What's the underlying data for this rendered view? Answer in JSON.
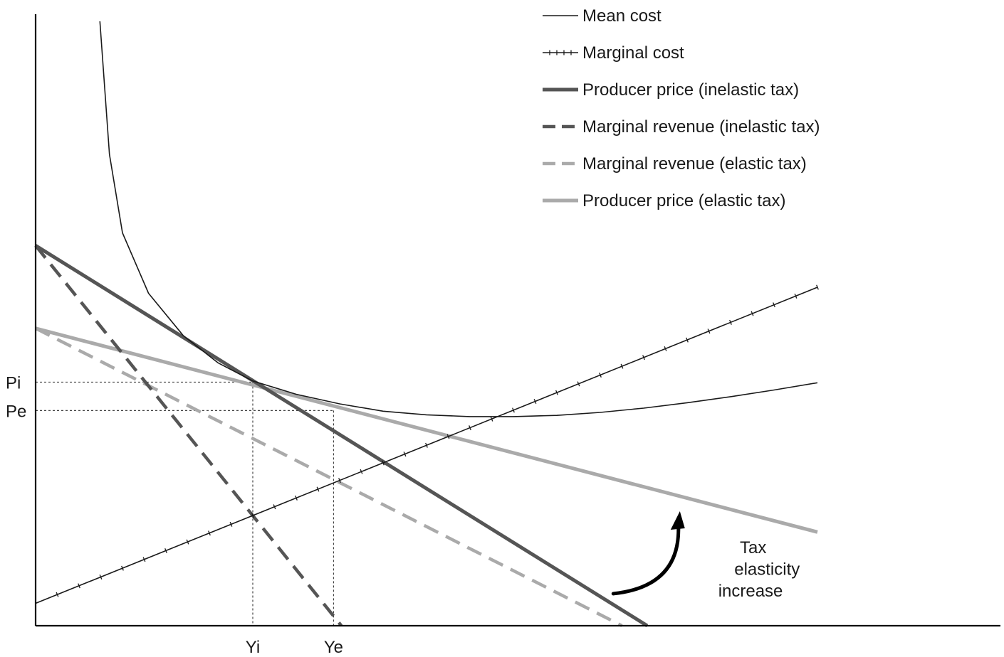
{
  "chart_data": {
    "type": "line",
    "title": "",
    "xlabel": "",
    "ylabel": "",
    "xlim": [
      0,
      100
    ],
    "ylim": [
      0,
      100
    ],
    "grid": false,
    "legend_position": "top-right",
    "axis_color": "#000000",
    "series": [
      {
        "name": "Mean cost",
        "style": "thin-solid",
        "color": "#1a1a1a",
        "points": [
          [
            7.4,
            100
          ],
          [
            8.5,
            78
          ],
          [
            10,
            65
          ],
          [
            13,
            55
          ],
          [
            17,
            48
          ],
          [
            21,
            43.5
          ],
          [
            25,
            40.5
          ],
          [
            30,
            38.3
          ],
          [
            35,
            36.7
          ],
          [
            40,
            35.5
          ],
          [
            45,
            34.9
          ],
          [
            50,
            34.6
          ],
          [
            55,
            34.6
          ],
          [
            60,
            34.8
          ],
          [
            65,
            35.3
          ],
          [
            70,
            36
          ],
          [
            75,
            36.9
          ],
          [
            80,
            37.9
          ],
          [
            85,
            39
          ],
          [
            90,
            40.2
          ]
        ]
      },
      {
        "name": "Marginal cost",
        "style": "thin-solid-ticked",
        "color": "#1a1a1a",
        "points": [
          [
            0,
            3.7
          ],
          [
            90,
            56
          ]
        ]
      },
      {
        "name": "Producer price (inelastic tax)",
        "style": "thick-solid",
        "color": "#555555",
        "points": [
          [
            0,
            62.9
          ],
          [
            70.4,
            0
          ]
        ]
      },
      {
        "name": "Marginal revenue (inelastic tax)",
        "style": "thick-dashed",
        "color": "#555555",
        "points": [
          [
            0,
            62.9
          ],
          [
            35.2,
            0
          ]
        ]
      },
      {
        "name": "Marginal revenue (elastic tax)",
        "style": "thick-dashed",
        "color": "#aaaaaa",
        "points": [
          [
            0,
            49.2
          ],
          [
            67.5,
            0
          ]
        ]
      },
      {
        "name": "Producer price (elastic tax)",
        "style": "thick-solid",
        "color": "#aaaaaa",
        "points": [
          [
            0,
            49.2
          ],
          [
            90,
            15.5
          ]
        ]
      }
    ],
    "x_ticks": [
      {
        "label": "Yi",
        "value": 25
      },
      {
        "label": "Ye",
        "value": 34.3
      }
    ],
    "y_ticks": [
      {
        "label": "Pi",
        "value": 40.3
      },
      {
        "label": "Pe",
        "value": 35.6
      }
    ],
    "guides": [
      {
        "x": 25,
        "y": 40.3
      },
      {
        "x": 34.3,
        "y": 35.6
      }
    ],
    "annotation": {
      "lines": [
        "Tax",
        "elasticity",
        "increase"
      ],
      "arrow_from": [
        66.5,
        5.3
      ],
      "arrow_to": [
        74,
        18
      ]
    }
  }
}
